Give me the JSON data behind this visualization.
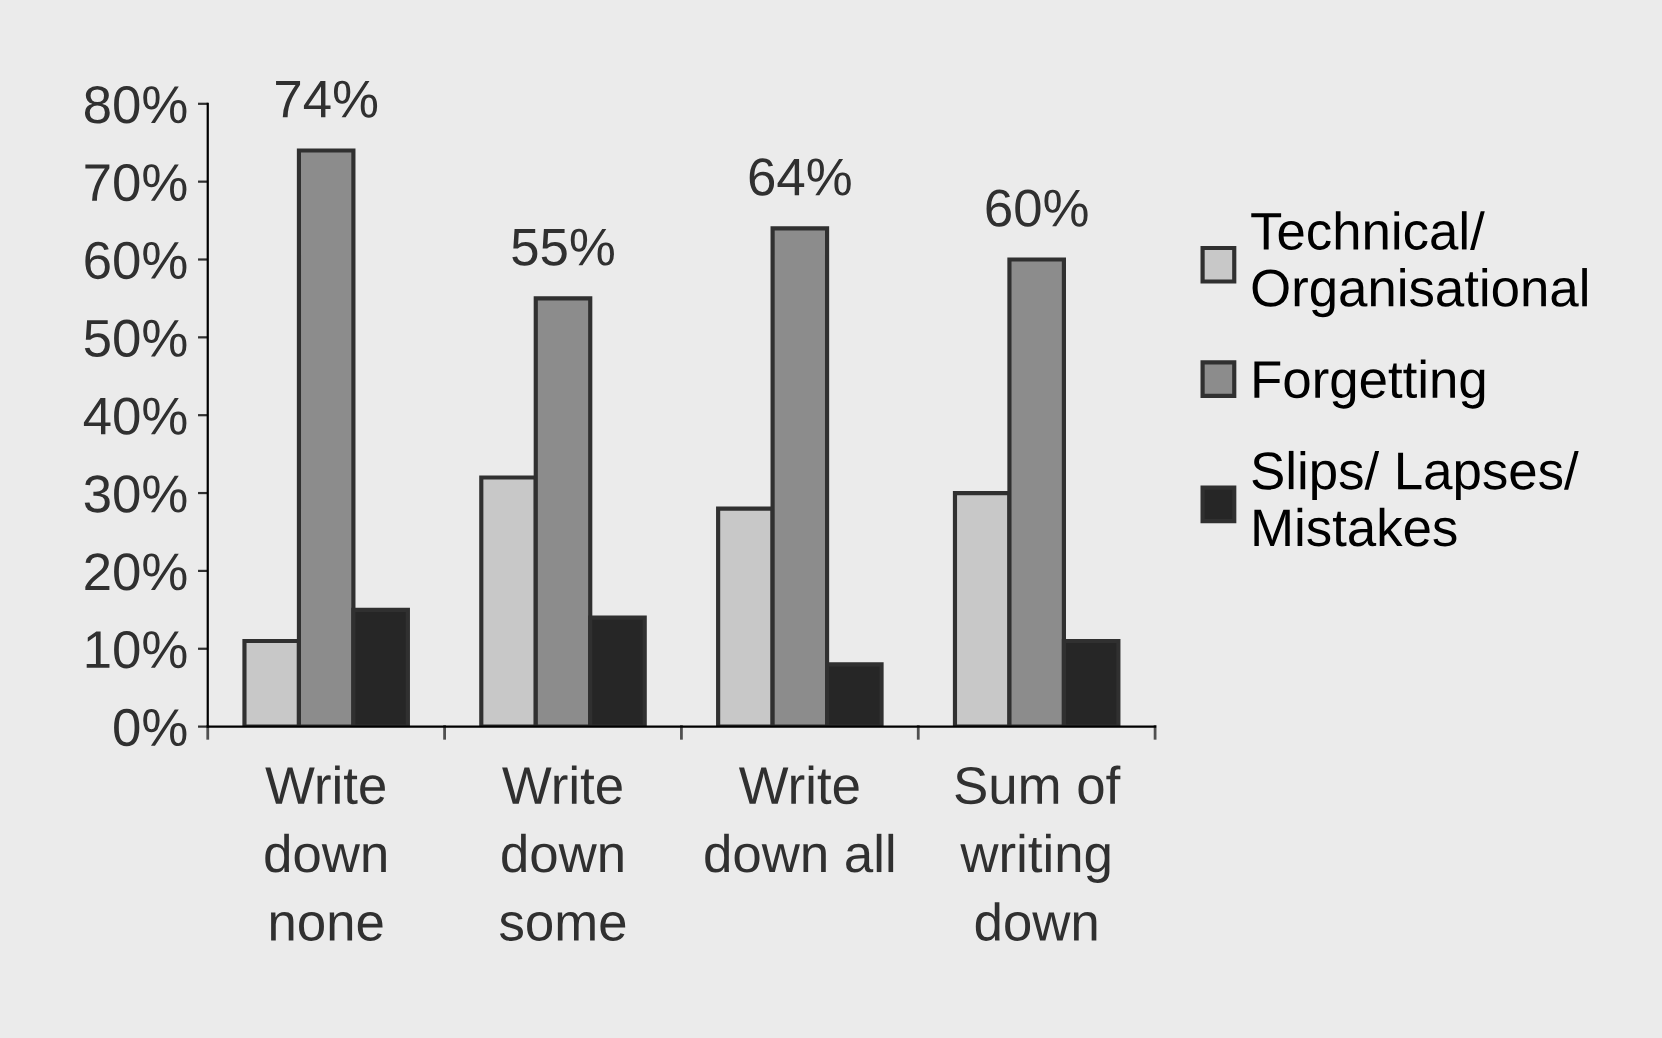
{
  "chart_data": {
    "type": "bar",
    "categories": [
      "Write\ndown\nnone",
      "Write\ndown\nsome",
      "Write\ndown all",
      "Sum of\nwriting\ndown"
    ],
    "series": [
      {
        "name": "Technical/\nOrganisational",
        "color": "#c8c8c8",
        "values": [
          11,
          32,
          28,
          30
        ]
      },
      {
        "name": "Forgetting",
        "color": "#8c8c8c",
        "values": [
          74,
          55,
          64,
          60
        ],
        "value_labels": [
          "74%",
          "55%",
          "64%",
          "60%"
        ]
      },
      {
        "name": "Slips/ Lapses/\nMistakes",
        "color": "#262626",
        "values": [
          15,
          14,
          8,
          11
        ]
      }
    ],
    "ylim": [
      0,
      80
    ],
    "yticks": [
      {
        "value": 0,
        "label": "0%"
      },
      {
        "value": 10,
        "label": "10%"
      },
      {
        "value": 20,
        "label": "20%"
      },
      {
        "value": 30,
        "label": "30%"
      },
      {
        "value": 40,
        "label": "40%"
      },
      {
        "value": 50,
        "label": "50%"
      },
      {
        "value": 60,
        "label": "60%"
      },
      {
        "value": 70,
        "label": "70%"
      },
      {
        "value": 80,
        "label": "80%"
      }
    ],
    "grid": false,
    "legend": "right"
  }
}
